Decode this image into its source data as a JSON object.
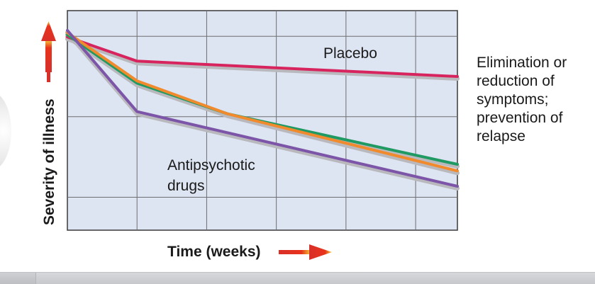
{
  "chart_data": {
    "type": "line",
    "x": [
      0,
      1,
      2,
      3,
      4,
      5
    ],
    "xlim": [
      0,
      5.6
    ],
    "ylim": [
      0,
      1
    ],
    "xlabel": "Time (weeks)",
    "ylabel": "Severity of illness",
    "grid": true,
    "series": [
      {
        "name": "Placebo",
        "color": "#d8245e",
        "x": [
          0,
          1,
          5.6
        ],
        "values": [
          0.88,
          0.77,
          0.7
        ]
      },
      {
        "name": "",
        "color": "#1f9a63",
        "x": [
          0,
          1,
          2.3,
          5.6
        ],
        "values": [
          0.89,
          0.67,
          0.53,
          0.3
        ]
      },
      {
        "name": "",
        "color": "#f08a2c",
        "x": [
          0,
          1,
          2.3,
          5.6
        ],
        "values": [
          0.9,
          0.68,
          0.53,
          0.27
        ]
      },
      {
        "name": "",
        "color": "#7c55a8",
        "x": [
          0,
          1,
          5.6
        ],
        "values": [
          0.91,
          0.54,
          0.2
        ]
      }
    ],
    "annotations": {
      "placebo": "Placebo",
      "drugs_line1": "Antipsychotic",
      "drugs_line2": "drugs"
    }
  },
  "side_note": {
    "lines": [
      "Elimination or",
      "reduction of",
      "symptoms;",
      "prevention of",
      "relapse"
    ]
  },
  "colors": {
    "plot_background": "#dde4f2",
    "arrow_gradient_start": "#e8331c",
    "arrow_gradient_end": "#f3d23a"
  }
}
